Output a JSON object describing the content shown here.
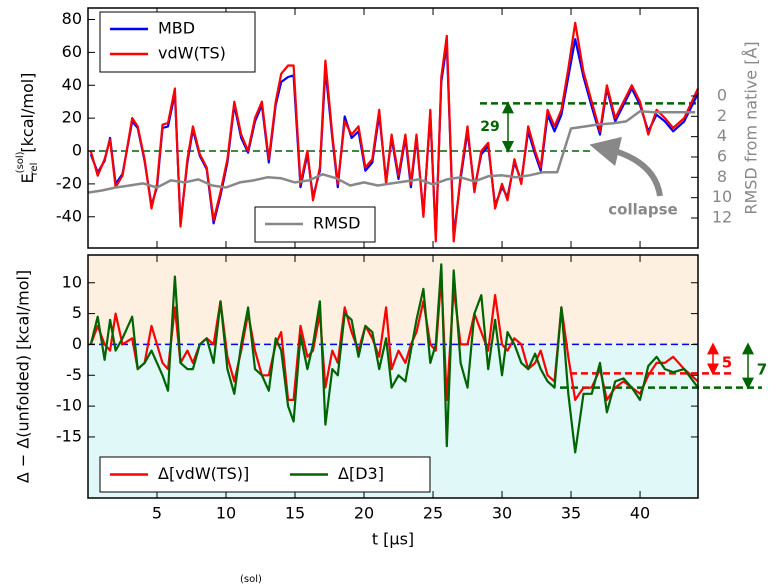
{
  "chart_data": [
    {
      "type": "line",
      "ylabel": "E",
      "ylabel_sup": "(sol)",
      "ylabel_sub": "rel",
      "ylabel_unit": "[kcal/mol]",
      "y2label": "RMSD from native [Å]",
      "xlim": [
        0,
        44.2
      ],
      "xticks": [
        5,
        10,
        15,
        20,
        25,
        30,
        35,
        40
      ],
      "ylim": [
        -59,
        87
      ],
      "yticks": [
        -40,
        -20,
        0,
        20,
        40,
        60,
        80
      ],
      "y2lim": [
        14.95,
        -8.65
      ],
      "y2ticks": [
        0,
        2,
        4,
        6,
        8,
        10,
        12
      ],
      "legend": "upper left",
      "legend2": "lower center",
      "x": [
        0.2,
        0.7,
        1.2,
        1.6,
        2.0,
        2.5,
        3.2,
        3.6,
        4.1,
        4.6,
        5.0,
        5.4,
        5.8,
        6.3,
        6.7,
        7.2,
        7.6,
        8.1,
        8.6,
        9.1,
        9.6,
        10.1,
        10.6,
        11.1,
        11.6,
        12.1,
        12.6,
        13.1,
        13.6,
        14.0,
        14.5,
        14.9,
        15.4,
        15.9,
        16.3,
        16.8,
        17.2,
        17.7,
        18.1,
        18.6,
        19.1,
        19.6,
        20.1,
        20.6,
        21.1,
        21.6,
        22.0,
        22.5,
        23.0,
        23.4,
        23.8,
        24.3,
        24.8,
        25.2,
        25.6,
        26.0,
        26.5,
        27.0,
        27.5,
        28.0,
        28.5,
        29.0,
        29.5,
        30.0,
        30.4,
        30.9,
        31.4,
        31.9,
        32.4,
        32.8,
        33.3,
        33.8,
        34.3,
        34.8,
        35.3,
        35.9,
        36.5,
        37.1,
        37.6,
        38.2,
        38.8,
        39.4,
        40.0,
        40.6,
        41.2,
        41.8,
        42.4,
        43.2,
        44.2
      ],
      "series": [
        {
          "name": "MBD",
          "color": "#0000ff",
          "values": [
            -2,
            -13,
            -6,
            8,
            -20,
            -14,
            18,
            14,
            -6,
            -33,
            -22,
            14,
            15,
            35,
            -44,
            -7,
            13,
            -3,
            -11,
            -44,
            -27,
            -7,
            28,
            8,
            -1,
            18,
            28,
            -7,
            28,
            42,
            45,
            46,
            -22,
            -2,
            -28,
            -12,
            50,
            8,
            -22,
            21,
            8,
            12,
            -12,
            -7,
            22,
            -18,
            8,
            -17,
            8,
            -22,
            8,
            -38,
            22,
            -52,
            42,
            65,
            -52,
            -17,
            12,
            -23,
            -2,
            3,
            -33,
            -22,
            -28,
            -7,
            -18,
            12,
            -2,
            -12,
            22,
            12,
            22,
            45,
            68,
            45,
            27,
            10,
            38,
            18,
            28,
            38,
            28,
            12,
            22,
            18,
            12,
            18,
            35
          ]
        },
        {
          "name": "vdW(TS)",
          "color": "#ff0000",
          "values": [
            0,
            -15,
            -5,
            7,
            -22,
            -15,
            20,
            15,
            -5,
            -35,
            -20,
            16,
            17,
            38,
            -46,
            -5,
            15,
            -2,
            -10,
            -42,
            -25,
            -5,
            30,
            10,
            0,
            20,
            30,
            -5,
            30,
            47,
            52,
            52,
            -20,
            0,
            -30,
            -10,
            55,
            10,
            -20,
            18,
            10,
            15,
            -10,
            -5,
            25,
            -20,
            10,
            -15,
            10,
            -20,
            10,
            -40,
            25,
            -55,
            45,
            70,
            -55,
            -15,
            15,
            -25,
            0,
            5,
            -35,
            -20,
            -30,
            -5,
            -20,
            15,
            0,
            -10,
            25,
            15,
            25,
            50,
            78,
            48,
            30,
            12,
            40,
            20,
            30,
            40,
            30,
            10,
            25,
            20,
            14,
            20,
            38
          ]
        },
        {
          "name": "RMSD",
          "color": "#888888",
          "axis": "y2",
          "x": [
            0,
            1,
            2,
            3,
            4,
            5,
            6,
            7,
            8,
            9,
            10,
            11,
            12,
            13,
            14,
            15,
            16,
            17,
            18,
            19,
            20,
            21,
            22,
            23,
            24,
            25,
            26,
            27,
            28,
            29,
            30,
            31,
            32,
            33,
            34,
            35,
            36,
            37,
            38,
            39,
            40,
            41,
            42,
            43,
            44
          ],
          "values": [
            9.5,
            9.3,
            9,
            8.8,
            8.6,
            9,
            8.3,
            8.5,
            8.2,
            8.8,
            9,
            8.5,
            8.3,
            8,
            8.1,
            8.5,
            8.3,
            7.7,
            8.1,
            8.8,
            8.5,
            8.8,
            8.6,
            8.4,
            8.2,
            8.7,
            8.2,
            8,
            8.4,
            7.9,
            7.8,
            8,
            7.8,
            7.5,
            7.5,
            3.2,
            3.0,
            2.8,
            2.7,
            2.5,
            1.5,
            1.6,
            1.6,
            1.6,
            1.6
          ]
        }
      ],
      "reference_lines": [
        {
          "value": 0,
          "color": "#006400"
        },
        {
          "value": 29,
          "color": "#006400"
        }
      ],
      "annotations": [
        {
          "text": "29",
          "color": "#006400"
        },
        {
          "text": "collapse",
          "color": "#888888"
        }
      ]
    },
    {
      "type": "line",
      "ylabel": "Δ − Δ(unfolded) [kcal/mol]",
      "xlabel": "t [μs]",
      "xlim": [
        0,
        44.2
      ],
      "xticks": [
        5,
        10,
        15,
        20,
        25,
        30,
        35,
        40
      ],
      "ylim": [
        -24.9,
        14.5
      ],
      "yticks": [
        -15,
        -10,
        -5,
        0,
        5,
        10
      ],
      "background": {
        "above": "#fdf0e0",
        "below": "#e0f8f8"
      },
      "legend": "lower left",
      "x": [
        0.2,
        0.7,
        1.2,
        1.6,
        2.0,
        2.5,
        3.2,
        3.6,
        4.1,
        4.6,
        5.0,
        5.4,
        5.8,
        6.3,
        6.7,
        7.2,
        7.6,
        8.1,
        8.6,
        9.1,
        9.6,
        10.1,
        10.6,
        11.1,
        11.6,
        12.1,
        12.6,
        13.1,
        13.6,
        14.0,
        14.5,
        14.9,
        15.4,
        15.9,
        16.3,
        16.8,
        17.2,
        17.7,
        18.1,
        18.6,
        19.1,
        19.6,
        20.1,
        20.6,
        21.1,
        21.6,
        22.0,
        22.5,
        23.0,
        23.4,
        23.8,
        24.3,
        24.8,
        25.2,
        25.6,
        26.0,
        26.5,
        27.0,
        27.5,
        28.0,
        28.5,
        29.0,
        29.5,
        30.0,
        30.4,
        30.9,
        31.4,
        31.9,
        32.4,
        32.8,
        33.3,
        33.8,
        34.3,
        34.8,
        35.3,
        35.9,
        36.5,
        37.1,
        37.6,
        38.2,
        38.8,
        39.4,
        40.0,
        40.6,
        41.2,
        41.8,
        42.4,
        43.2,
        44.2
      ],
      "series": [
        {
          "name": "Δ[vdW(TS)]",
          "color": "#ff0000",
          "values": [
            0,
            3,
            0,
            -1,
            5,
            0,
            1,
            -4,
            -3,
            3,
            0,
            -3,
            -4,
            6,
            -3,
            -1,
            -3,
            0,
            1,
            0,
            7,
            -2,
            -6,
            -1,
            5,
            -1,
            -5,
            -5,
            0,
            2,
            -9,
            -9,
            3,
            -2,
            -1,
            5,
            -7,
            -1,
            -3,
            6,
            2,
            -1,
            3,
            1,
            -2,
            6,
            -4,
            -1,
            -3,
            0,
            2,
            7,
            0,
            -1,
            11,
            -9,
            9,
            0,
            0,
            5,
            2,
            -1,
            8,
            0,
            -1,
            1,
            0,
            -4,
            -3,
            -1,
            -5,
            -6,
            6,
            -2,
            -9,
            -7,
            -7,
            -4,
            -9,
            -7,
            -6,
            -7,
            -8,
            -5,
            -3,
            -3,
            -2,
            -4,
            -6
          ]
        },
        {
          "name": "Δ[D3]",
          "color": "#006400",
          "values": [
            0,
            4.5,
            -2.5,
            4,
            -1,
            1,
            4.5,
            -4,
            -3,
            -1,
            -3,
            -5,
            -7.5,
            11,
            -3,
            -4,
            -4,
            0,
            1,
            -3,
            7,
            -4,
            -8,
            0,
            6,
            -4,
            -5,
            -7.5,
            1,
            -1,
            -10,
            -12.5,
            1.5,
            -4,
            0,
            7,
            -13,
            -4,
            -5,
            5,
            4,
            -2,
            3,
            2,
            -4,
            1,
            -7,
            -5,
            -6,
            -1,
            4,
            9,
            -3,
            0,
            13,
            -16.5,
            12,
            -3,
            -7,
            5,
            8,
            -4,
            4,
            -5,
            2,
            0,
            -3,
            -4,
            -1.5,
            -4,
            -6,
            -7,
            6,
            -8,
            -17.5,
            -8,
            -8,
            -3,
            -11,
            -6,
            -5.5,
            -7,
            -9,
            -3.5,
            -2,
            -4,
            -4.5,
            -4,
            -7
          ]
        }
      ],
      "reference_lines": [
        {
          "value": 0,
          "color": "#0000ff"
        },
        {
          "value": -4.7,
          "color": "#ff0000"
        },
        {
          "value": -7,
          "color": "#006400"
        }
      ],
      "annotations": [
        {
          "text": "5",
          "color": "#ff0000"
        },
        {
          "text": "7",
          "color": "#006400"
        }
      ]
    }
  ],
  "caption_fragment": "(sol)"
}
